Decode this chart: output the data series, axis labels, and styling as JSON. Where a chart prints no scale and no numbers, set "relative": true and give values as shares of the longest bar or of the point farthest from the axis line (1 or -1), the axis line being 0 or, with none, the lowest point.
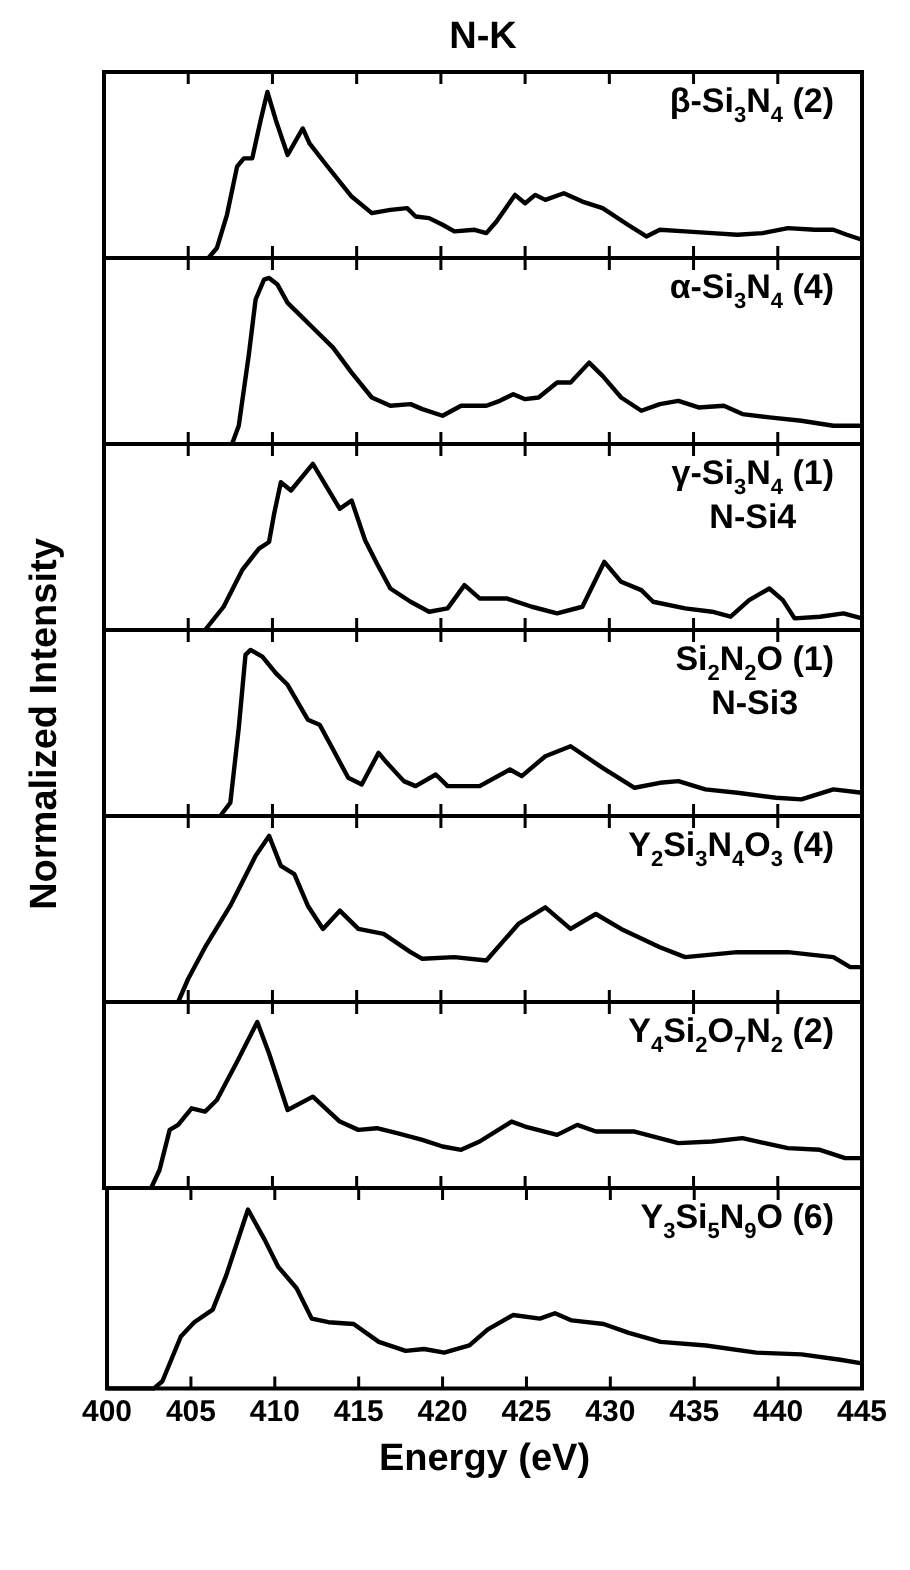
{
  "chart_data": [
    {
      "type": "line",
      "title": "N-K",
      "relative": true,
      "tick_labels": false,
      "xlim": [
        400,
        445
      ],
      "xticks": [
        400,
        405,
        410,
        415,
        420,
        425,
        430,
        435,
        440,
        445
      ],
      "annotations": [
        "β-Si$_{3}$N$_{4}$ (2)"
      ],
      "color": "#000000",
      "x": [
        406.2,
        406.7,
        407.3,
        407.9,
        408.3,
        408.8,
        409.3,
        409.7,
        410.2,
        410.9,
        411.4,
        411.8,
        412.2,
        413.2,
        414.7,
        415.9,
        417.0,
        418.0,
        418.5,
        419.3,
        420.1,
        420.8,
        422.0,
        422.7,
        423.3,
        424.4,
        425.0,
        425.6,
        426.2,
        427.3,
        428.4,
        429.6,
        431.1,
        432.2,
        433.0,
        434.5,
        436.1,
        437.6,
        439.1,
        440.6,
        442.2,
        443.3,
        444.1,
        445.0
      ],
      "values": [
        0,
        0.06,
        0.26,
        0.55,
        0.6,
        0.6,
        0.83,
        1,
        0.83,
        0.62,
        0.71,
        0.78,
        0.69,
        0.56,
        0.37,
        0.27,
        0.29,
        0.3,
        0.25,
        0.24,
        0.2,
        0.16,
        0.17,
        0.15,
        0.22,
        0.38,
        0.33,
        0.38,
        0.35,
        0.39,
        0.34,
        0.3,
        0.2,
        0.13,
        0.17,
        0.16,
        0.15,
        0.14,
        0.15,
        0.18,
        0.17,
        0.17,
        0.14,
        0.11
      ]
    },
    {
      "type": "line",
      "relative": true,
      "tick_labels": false,
      "xlim": [
        400,
        445
      ],
      "xticks": [
        400,
        405,
        410,
        415,
        420,
        425,
        430,
        435,
        440,
        445
      ],
      "annotations": [
        "α-Si$_{3}$N$_{4}$ (4)"
      ],
      "color": "#000000",
      "x": [
        407.6,
        408.0,
        408.6,
        409.0,
        409.5,
        409.8,
        410.3,
        410.9,
        411.7,
        412.4,
        413.6,
        414.7,
        415.9,
        417.0,
        418.2,
        418.9,
        420.1,
        421.2,
        422.7,
        423.5,
        424.3,
        425.0,
        425.8,
        426.9,
        427.7,
        428.8,
        429.6,
        430.7,
        431.9,
        433.0,
        434.1,
        435.3,
        436.8,
        437.9,
        439.5,
        441.4,
        443.3,
        445.0
      ],
      "values": [
        0,
        0.11,
        0.54,
        0.87,
        0.99,
        1,
        0.96,
        0.85,
        0.77,
        0.7,
        0.58,
        0.43,
        0.28,
        0.23,
        0.24,
        0.21,
        0.17,
        0.23,
        0.23,
        0.26,
        0.3,
        0.27,
        0.28,
        0.37,
        0.37,
        0.49,
        0.41,
        0.28,
        0.2,
        0.24,
        0.26,
        0.22,
        0.23,
        0.18,
        0.16,
        0.14,
        0.11,
        0.11
      ]
    },
    {
      "type": "line",
      "relative": true,
      "tick_labels": false,
      "xlim": [
        400,
        445
      ],
      "xticks": [
        400,
        405,
        410,
        415,
        420,
        425,
        430,
        435,
        440,
        445
      ],
      "annotations": [
        "γ-Si$_{3}$N$_{4}$ (1)",
        "N-Si4"
      ],
      "color": "#000000",
      "x": [
        406.0,
        407.1,
        408.2,
        409.2,
        409.8,
        410.1,
        410.5,
        411.1,
        412.4,
        414.0,
        414.7,
        415.5,
        416.2,
        417.0,
        418.2,
        419.3,
        420.4,
        421.4,
        422.3,
        423.9,
        425.4,
        426.9,
        428.4,
        429.7,
        430.7,
        431.9,
        432.6,
        434.5,
        436.1,
        437.2,
        438.3,
        439.5,
        440.3,
        441.0,
        442.5,
        443.9,
        445.0
      ],
      "values": [
        0,
        0.14,
        0.36,
        0.49,
        0.53,
        0.7,
        0.89,
        0.84,
        1,
        0.73,
        0.78,
        0.54,
        0.4,
        0.25,
        0.17,
        0.11,
        0.13,
        0.27,
        0.19,
        0.19,
        0.14,
        0.1,
        0.14,
        0.41,
        0.29,
        0.24,
        0.17,
        0.13,
        0.11,
        0.08,
        0.18,
        0.25,
        0.18,
        0.07,
        0.08,
        0.1,
        0.07
      ]
    },
    {
      "type": "line",
      "ylabel": "Normalized Intensity",
      "relative": true,
      "tick_labels": false,
      "xlim": [
        400,
        445
      ],
      "xticks": [
        400,
        405,
        410,
        415,
        420,
        425,
        430,
        435,
        440,
        445
      ],
      "annotations": [
        "Si$_{2}$N$_{2}$O (1)",
        "N-Si3"
      ],
      "color": "#000000",
      "x": [
        406.9,
        407.5,
        408.0,
        408.4,
        408.7,
        409.4,
        410.2,
        410.9,
        412.1,
        412.8,
        413.6,
        414.5,
        415.3,
        416.3,
        416.8,
        417.8,
        418.5,
        419.7,
        420.4,
        422.3,
        424.1,
        424.8,
        426.2,
        427.7,
        429.6,
        431.5,
        433.0,
        434.1,
        435.7,
        437.6,
        439.9,
        441.4,
        443.3,
        445.0
      ],
      "values": [
        0,
        0.08,
        0.53,
        0.97,
        1,
        0.96,
        0.86,
        0.79,
        0.58,
        0.55,
        0.4,
        0.23,
        0.19,
        0.38,
        0.32,
        0.21,
        0.18,
        0.25,
        0.18,
        0.18,
        0.28,
        0.24,
        0.36,
        0.42,
        0.29,
        0.17,
        0.2,
        0.21,
        0.16,
        0.14,
        0.11,
        0.1,
        0.16,
        0.14
      ]
    },
    {
      "type": "line",
      "relative": true,
      "tick_labels": false,
      "xlim": [
        400,
        445
      ],
      "xticks": [
        400,
        405,
        410,
        415,
        420,
        425,
        430,
        435,
        440,
        445
      ],
      "annotations": [
        "Y$_{2}$Si$_{3}$N$_{4}$O$_{3}$ (4)"
      ],
      "color": "#000000",
      "x": [
        404.4,
        405.0,
        406.0,
        407.5,
        409.0,
        409.8,
        410.5,
        411.3,
        412.1,
        413.0,
        414.0,
        415.1,
        416.6,
        418.2,
        418.9,
        420.8,
        422.7,
        424.6,
        426.2,
        427.7,
        429.2,
        430.7,
        433.0,
        434.5,
        437.6,
        440.6,
        443.3,
        444.3,
        445.0
      ],
      "values": [
        0,
        0.14,
        0.33,
        0.58,
        0.88,
        1,
        0.82,
        0.77,
        0.58,
        0.44,
        0.55,
        0.44,
        0.41,
        0.3,
        0.26,
        0.27,
        0.25,
        0.47,
        0.57,
        0.44,
        0.53,
        0.44,
        0.33,
        0.27,
        0.3,
        0.3,
        0.27,
        0.21,
        0.21
      ]
    },
    {
      "type": "line",
      "relative": true,
      "tick_labels": false,
      "xlim": [
        400,
        445
      ],
      "xticks": [
        400,
        405,
        410,
        415,
        420,
        425,
        430,
        435,
        440,
        445
      ],
      "annotations": [
        "Y$_{4}$Si$_{2}$O$_{7}$N$_{2}$ (2)"
      ],
      "color": "#000000",
      "x": [
        402.8,
        403.3,
        403.9,
        404.4,
        405.2,
        406.0,
        406.7,
        407.9,
        409.1,
        409.8,
        410.9,
        412.4,
        414.0,
        415.1,
        416.2,
        417.4,
        418.9,
        420.1,
        421.2,
        422.3,
        424.2,
        425.0,
        426.9,
        428.1,
        429.2,
        431.5,
        434.1,
        436.1,
        437.9,
        440.6,
        442.5,
        444.0,
        445.0
      ],
      "values": [
        0,
        0.11,
        0.35,
        0.38,
        0.48,
        0.46,
        0.53,
        0.76,
        1,
        0.81,
        0.47,
        0.55,
        0.4,
        0.35,
        0.36,
        0.33,
        0.29,
        0.25,
        0.23,
        0.28,
        0.4,
        0.37,
        0.32,
        0.38,
        0.34,
        0.34,
        0.27,
        0.28,
        0.3,
        0.24,
        0.23,
        0.18,
        0.18
      ]
    },
    {
      "type": "line",
      "xlabel": "Energy (eV)",
      "relative": true,
      "tick_labels": "x",
      "xlim": [
        400,
        445
      ],
      "xticks": [
        400,
        405,
        410,
        415,
        420,
        425,
        430,
        435,
        440,
        445
      ],
      "annotations": [
        "Y$_{3}$Si$_{5}$N$_{9}$O (6)"
      ],
      "color": "#000000",
      "x": [
        400,
        402.8,
        403.3,
        404.4,
        405.2,
        406.3,
        407.1,
        408.4,
        409.4,
        410.2,
        411.3,
        412.2,
        413.2,
        414.7,
        416.2,
        417.8,
        418.9,
        420.1,
        421.6,
        422.7,
        424.2,
        425.8,
        426.7,
        427.7,
        429.6,
        431.1,
        433.0,
        435.7,
        438.7,
        441.4,
        443.7,
        445.0
      ],
      "values": [
        0,
        0,
        0.04,
        0.29,
        0.37,
        0.44,
        0.63,
        1,
        0.83,
        0.68,
        0.56,
        0.39,
        0.37,
        0.36,
        0.26,
        0.21,
        0.22,
        0.2,
        0.24,
        0.33,
        0.41,
        0.39,
        0.42,
        0.38,
        0.36,
        0.31,
        0.26,
        0.24,
        0.2,
        0.19,
        0.16,
        0.14
      ]
    }
  ]
}
